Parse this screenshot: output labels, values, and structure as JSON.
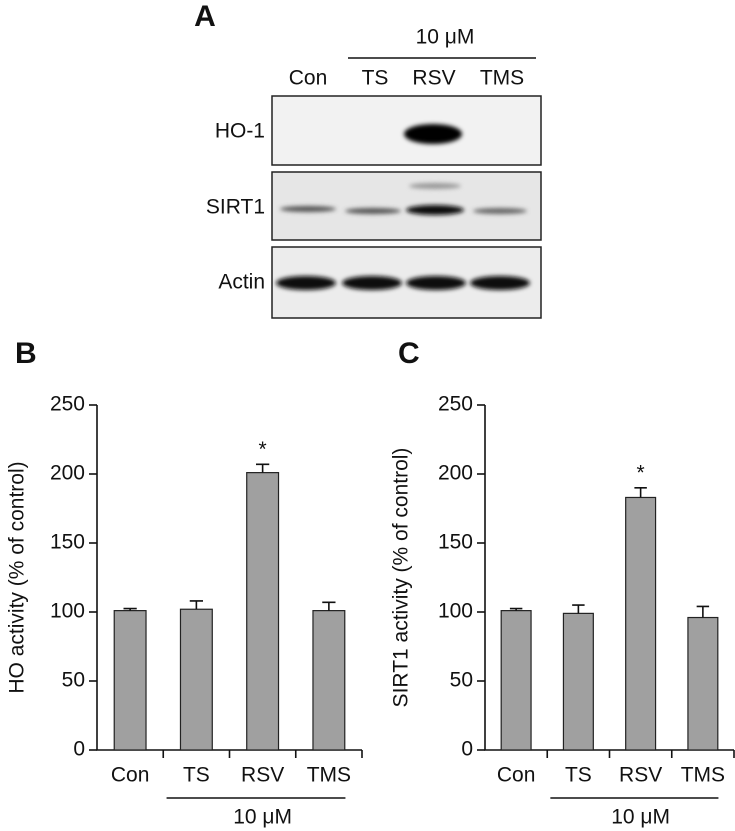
{
  "blot": {
    "panel_label": "A",
    "treatment": "10 μM",
    "lanes": [
      "Con",
      "TS",
      "RSV",
      "TMS"
    ],
    "rows": [
      "HO-1",
      "SIRT1",
      "Actin"
    ]
  },
  "chart_data": [
    {
      "type": "bar",
      "panel_label": "B",
      "y_label": "HO activity (% of control)",
      "categories": [
        "Con",
        "TS",
        "RSV",
        "TMS"
      ],
      "values": [
        101,
        102,
        201,
        101
      ],
      "errors": [
        1.5,
        6,
        6,
        6
      ],
      "significance": [
        null,
        null,
        "*",
        null
      ],
      "group_label": "10 μM",
      "color": "#a0a0a0",
      "ylim": [
        0,
        250
      ],
      "yticks": [
        0,
        50,
        100,
        150,
        200,
        250
      ]
    },
    {
      "type": "bar",
      "panel_label": "C",
      "y_label": "SIRT1 activity (% of control)",
      "categories": [
        "Con",
        "TS",
        "RSV",
        "TMS"
      ],
      "values": [
        101,
        99,
        183,
        96
      ],
      "errors": [
        1.5,
        6,
        7,
        8
      ],
      "significance": [
        null,
        null,
        "*",
        null
      ],
      "group_label": "10 μM",
      "color": "#a0a0a0",
      "ylim": [
        0,
        250
      ],
      "yticks": [
        0,
        50,
        100,
        150,
        200,
        250
      ]
    }
  ]
}
